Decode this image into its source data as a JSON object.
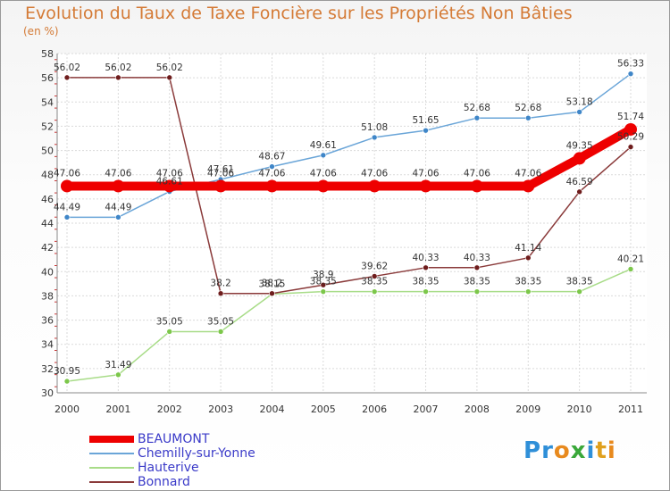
{
  "chart_data": {
    "type": "line",
    "title": "Evolution du Taux de Taxe Foncière sur les Propriétés Non Bâties",
    "unit": "(en %)",
    "x": [
      "2000",
      "2001",
      "2002",
      "2003",
      "2004",
      "2005",
      "2006",
      "2007",
      "2008",
      "2009",
      "2010",
      "2011"
    ],
    "ylim": [
      30,
      58
    ],
    "yticks": [
      30,
      32,
      34,
      36,
      38,
      40,
      42,
      44,
      46,
      48,
      50,
      52,
      54,
      56,
      58
    ],
    "grid": true,
    "series": [
      {
        "name": "BEAUMONT",
        "color": "#ee0000",
        "highlight": true,
        "values": [
          47.06,
          47.06,
          47.06,
          47.06,
          47.06,
          47.06,
          47.06,
          47.06,
          47.06,
          47.06,
          49.35,
          51.74
        ],
        "labels": [
          "47.06",
          "47.06",
          "47.06",
          "47.06",
          "47.06",
          "47.06",
          "47.06",
          "47.06",
          "47.06",
          "47.06",
          "49.35",
          "51.74"
        ]
      },
      {
        "name": "Chemilly-sur-Yonne",
        "color": "#6aa5d8",
        "point": "#3f86c8",
        "values": [
          44.49,
          44.49,
          46.61,
          47.61,
          48.67,
          49.61,
          51.08,
          51.65,
          52.68,
          52.68,
          53.18,
          56.33
        ],
        "labels": [
          "44.49",
          "44.49",
          "46.61",
          "47.61",
          "48.67",
          "49.61",
          "51.08",
          "51.65",
          "52.68",
          "52.68",
          "53.18",
          "56.33"
        ]
      },
      {
        "name": "Hauterive",
        "color": "#a8dc88",
        "point": "#7cc74a",
        "values": [
          30.95,
          31.49,
          35.05,
          35.05,
          38.15,
          38.35,
          38.35,
          38.35,
          38.35,
          38.35,
          38.35,
          40.21
        ],
        "labels": [
          "30.95",
          "31.49",
          "35.05",
          "35.05",
          "38.15",
          "38.35",
          "38.35",
          "38.35",
          "38.35",
          "38.35",
          "38.35",
          "40.21"
        ]
      },
      {
        "name": "Bonnard",
        "color": "#8a3a3a",
        "point": "#6e1c1c",
        "values": [
          56.02,
          56.02,
          56.02,
          38.2,
          38.2,
          38.9,
          39.62,
          40.33,
          40.33,
          41.14,
          46.59,
          50.29
        ],
        "labels": [
          "56.02",
          "56.02",
          "56.02",
          "38.2",
          "38.2",
          "38.9",
          "39.62",
          "40.33",
          "40.33",
          "41.14",
          "46.59",
          "50.29"
        ]
      }
    ]
  },
  "legend": {
    "items": [
      "BEAUMONT",
      "Chemilly-sur-Yonne",
      "Hauterive",
      "Bonnard"
    ]
  },
  "logo": {
    "letters": [
      "P",
      "r",
      "o",
      "x",
      "i",
      "t",
      "i"
    ],
    "colors": [
      "#2f8fd8",
      "#2f8fd8",
      "#e88a1e",
      "#3aa83a",
      "#2f8fd8",
      "#e0a01e",
      "#e88a1e"
    ]
  }
}
